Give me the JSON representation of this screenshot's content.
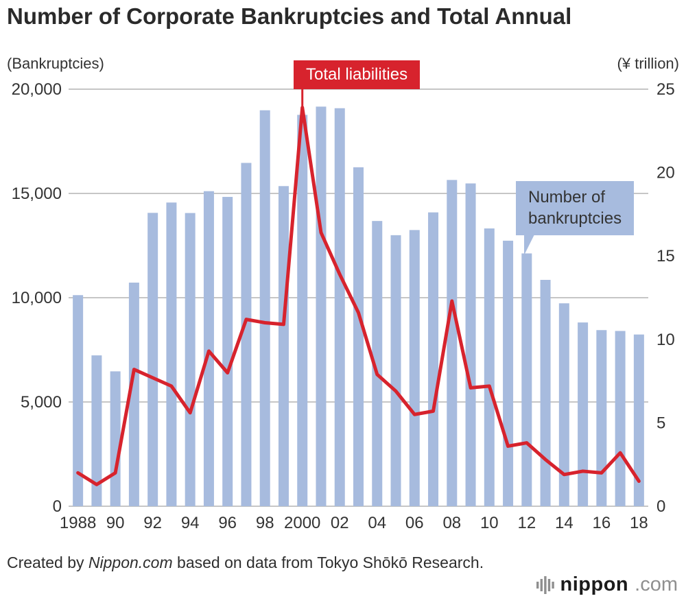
{
  "title": "Number of Corporate Bankruptcies and Total Annual",
  "annotations": {
    "liabilities_label": "Total liabilities",
    "bankruptcies_label_line1": "Number of",
    "bankruptcies_label_line2": "bankruptcies"
  },
  "footer": {
    "prefix": "Created by ",
    "source": "Nippon.com",
    "suffix": " based on data from Tokyo Shōkō Research."
  },
  "logo": {
    "icon": "equalizer-bars-icon",
    "name": "nippon",
    "tld": ".com"
  },
  "chart_data": {
    "type": "bar",
    "title": "Number of Corporate Bankruptcies and Total Annual",
    "grid": "horizontal",
    "categories": [
      1988,
      1989,
      1990,
      1991,
      1992,
      1993,
      1994,
      1995,
      1996,
      1997,
      1998,
      1999,
      2000,
      2001,
      2002,
      2003,
      2004,
      2005,
      2006,
      2007,
      2008,
      2009,
      2010,
      2011,
      2012,
      2013,
      2014,
      2015,
      2016,
      2017,
      2018
    ],
    "series": [
      {
        "name": "Number of bankruptcies",
        "type": "bar",
        "axis": "left",
        "color": "#a7bbde",
        "values": [
          10123,
          7234,
          6468,
          10723,
          14069,
          14564,
          14061,
          15108,
          14834,
          16464,
          18988,
          15352,
          18769,
          19164,
          19087,
          16255,
          13679,
          12998,
          13245,
          14091,
          15646,
          15480,
          13321,
          12734,
          12124,
          10855,
          9731,
          8812,
          8446,
          8405,
          8235
        ]
      },
      {
        "name": "Total liabilities",
        "type": "line",
        "axis": "right",
        "color": "#d7232d",
        "values": [
          2.0,
          1.3,
          2.0,
          8.2,
          7.7,
          7.2,
          5.6,
          9.3,
          8.0,
          11.2,
          11.0,
          10.9,
          23.9,
          16.4,
          13.9,
          11.6,
          7.9,
          6.9,
          5.5,
          5.7,
          12.3,
          7.1,
          7.2,
          3.6,
          3.8,
          2.8,
          1.9,
          2.1,
          2.0,
          3.2,
          1.5
        ]
      }
    ],
    "left_axis": {
      "label": "(Bankruptcies)",
      "min": 0,
      "max": 20000,
      "ticks": [
        0,
        5000,
        10000,
        15000,
        20000
      ],
      "tick_labels": [
        "0",
        "5,000",
        "10,000",
        "15,000",
        "20,000"
      ]
    },
    "right_axis": {
      "label": "(¥ trillion)",
      "min": 0,
      "max": 25,
      "ticks": [
        0,
        5,
        10,
        15,
        20,
        25
      ],
      "tick_labels": [
        "0",
        "5",
        "10",
        "15",
        "20",
        "25"
      ]
    },
    "x_ticks": [
      {
        "index": 0,
        "label": "1988"
      },
      {
        "index": 2,
        "label": "90"
      },
      {
        "index": 4,
        "label": "92"
      },
      {
        "index": 6,
        "label": "94"
      },
      {
        "index": 8,
        "label": "96"
      },
      {
        "index": 10,
        "label": "98"
      },
      {
        "index": 12,
        "label": "2000"
      },
      {
        "index": 14,
        "label": "02"
      },
      {
        "index": 16,
        "label": "04"
      },
      {
        "index": 18,
        "label": "06"
      },
      {
        "index": 20,
        "label": "08"
      },
      {
        "index": 22,
        "label": "10"
      },
      {
        "index": 24,
        "label": "12"
      },
      {
        "index": 26,
        "label": "14"
      },
      {
        "index": 28,
        "label": "16"
      },
      {
        "index": 30,
        "label": "18"
      }
    ],
    "annotation_anchor": {
      "series": "Total liabilities",
      "year": 2000,
      "value": 23.9
    },
    "legend_position": "callout-labels"
  }
}
